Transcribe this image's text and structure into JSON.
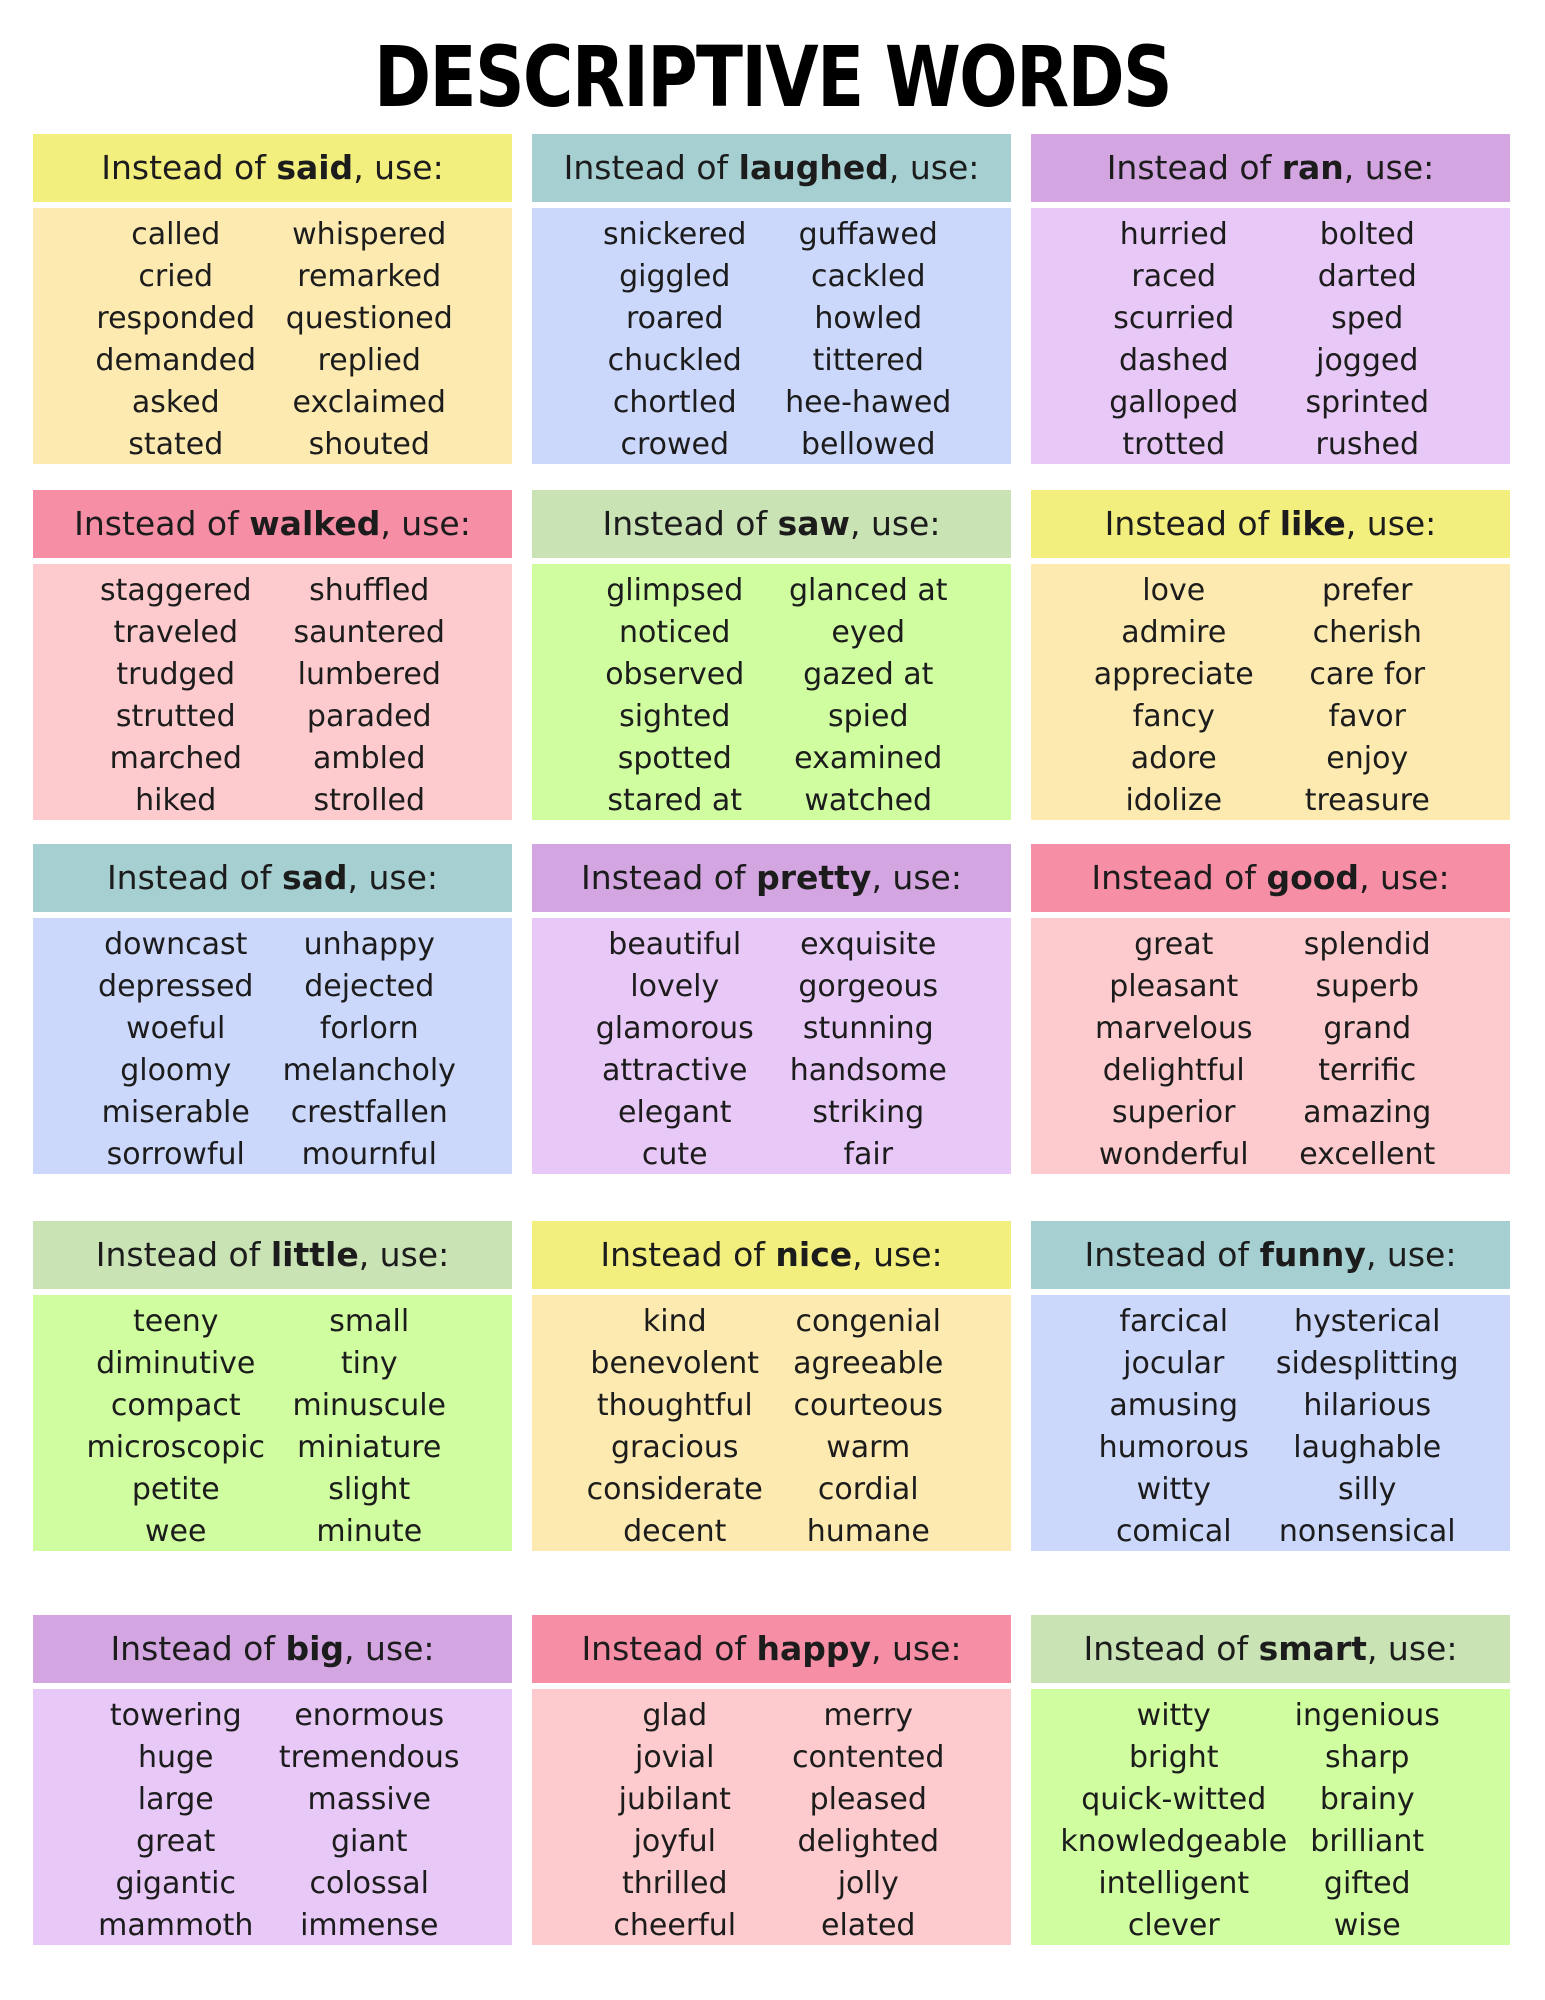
{
  "title": "DESCRIPTIVE WORDS",
  "prefix": "Instead of ",
  "suffix": ", use:",
  "cards": [
    {
      "word": "said",
      "header_color": "#f3ef7e",
      "body_color": "#fdeab0",
      "left": [
        "called",
        "cried",
        "responded",
        "demanded",
        "asked",
        "stated"
      ],
      "right": [
        "whispered",
        "remarked",
        "questioned",
        "replied",
        "exclaimed",
        "shouted"
      ]
    },
    {
      "word": "laughed",
      "header_color": "#a6cfd1",
      "body_color": "#ccd8fb",
      "left": [
        "snickered",
        "giggled",
        "roared",
        "chuckled",
        "chortled",
        "crowed"
      ],
      "right": [
        "guffawed",
        "cackled",
        "howled",
        "tittered",
        "hee-hawed",
        "bellowed"
      ]
    },
    {
      "word": "ran",
      "header_color": "#d3a6e2",
      "body_color": "#e8c8f7",
      "left": [
        "hurried",
        "raced",
        "scurried",
        "dashed",
        "galloped",
        "trotted"
      ],
      "right": [
        "bolted",
        "darted",
        "sped",
        "jogged",
        "sprinted",
        "rushed"
      ]
    },
    {
      "word": "walked",
      "header_color": "#f68ea6",
      "body_color": "#fdcbcd",
      "left": [
        "staggered",
        "traveled",
        "trudged",
        "strutted",
        "marched",
        "hiked"
      ],
      "right": [
        "shuffled",
        "sauntered",
        "lumbered",
        "paraded",
        "ambled",
        "strolled"
      ]
    },
    {
      "word": "saw",
      "header_color": "#cae3b5",
      "body_color": "#cffd9f",
      "left": [
        "glimpsed",
        "noticed",
        "observed",
        "sighted",
        "spotted",
        "stared at"
      ],
      "right": [
        "glanced at",
        "eyed",
        "gazed at",
        "spied",
        "examined",
        "watched"
      ]
    },
    {
      "word": "like",
      "header_color": "#f3ef7e",
      "body_color": "#fdeab0",
      "left": [
        "love",
        "admire",
        "appreciate",
        "fancy",
        "adore",
        "idolize"
      ],
      "right": [
        "prefer",
        "cherish",
        "care for",
        "favor",
        "enjoy",
        "treasure"
      ]
    },
    {
      "word": "sad",
      "header_color": "#a6cfd1",
      "body_color": "#ccd8fb",
      "left": [
        "downcast",
        "depressed",
        "woeful",
        "gloomy",
        "miserable",
        "sorrowful"
      ],
      "right": [
        "unhappy",
        "dejected",
        "forlorn",
        "melancholy",
        "crestfallen",
        "mournful"
      ]
    },
    {
      "word": "pretty",
      "header_color": "#d3a6e2",
      "body_color": "#e8c8f7",
      "left": [
        "beautiful",
        "lovely",
        "glamorous",
        "attractive",
        "elegant",
        "cute"
      ],
      "right": [
        "exquisite",
        "gorgeous",
        "stunning",
        "handsome",
        "striking",
        "fair"
      ]
    },
    {
      "word": "good",
      "header_color": "#f68ea6",
      "body_color": "#fdcbcd",
      "left": [
        "great",
        "pleasant",
        "marvelous",
        "delightful",
        "superior",
        "wonderful"
      ],
      "right": [
        "splendid",
        "superb",
        "grand",
        "terrific",
        "amazing",
        "excellent"
      ]
    },
    {
      "word": "little",
      "header_color": "#cae3b5",
      "body_color": "#cffd9f",
      "left": [
        "teeny",
        "diminutive",
        "compact",
        "microscopic",
        "petite",
        "wee"
      ],
      "right": [
        "small",
        "tiny",
        "minuscule",
        "miniature",
        "slight",
        "minute"
      ]
    },
    {
      "word": "nice",
      "header_color": "#f3ef7e",
      "body_color": "#fdeab0",
      "left": [
        "kind",
        "benevolent",
        "thoughtful",
        "gracious",
        "considerate",
        "decent"
      ],
      "right": [
        "congenial",
        "agreeable",
        "courteous",
        "warm",
        "cordial",
        "humane"
      ]
    },
    {
      "word": "funny",
      "header_color": "#a6cfd1",
      "body_color": "#ccd8fb",
      "left": [
        "farcical",
        "jocular",
        "amusing",
        "humorous",
        "witty",
        "comical"
      ],
      "right": [
        "hysterical",
        "sidesplitting",
        "hilarious",
        "laughable",
        "silly",
        "nonsensical"
      ]
    },
    {
      "word": "big",
      "header_color": "#d3a6e2",
      "body_color": "#e8c8f7",
      "left": [
        "towering",
        "huge",
        "large",
        "great",
        "gigantic",
        "mammoth"
      ],
      "right": [
        "enormous",
        "tremendous",
        "massive",
        "giant",
        "colossal",
        "immense"
      ]
    },
    {
      "word": "happy",
      "header_color": "#f68ea6",
      "body_color": "#fdcbcd",
      "left": [
        "glad",
        "jovial",
        "jubilant",
        "joyful",
        "thrilled",
        "cheerful"
      ],
      "right": [
        "merry",
        "contented",
        "pleased",
        "delighted",
        "jolly",
        "elated"
      ]
    },
    {
      "word": "smart",
      "header_color": "#cae3b5",
      "body_color": "#cffd9f",
      "left": [
        "witty",
        "bright",
        "quick-witted",
        "knowledgeable",
        "intelligent",
        "clever"
      ],
      "right": [
        "ingenious",
        "sharp",
        "brainy",
        "brilliant",
        "gifted",
        "wise"
      ]
    }
  ]
}
